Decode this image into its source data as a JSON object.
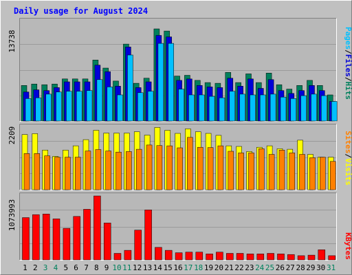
{
  "title": "Daily usage for August 2024",
  "colors": {
    "background": "#c0c0c0",
    "plot": "#b8b8b8",
    "title": "#0000ff",
    "hits": "#00805c",
    "files": "#0000d8",
    "pages": "#00c0ff",
    "visits": "#ffff00",
    "sites": "#ff8000",
    "kbytes": "#ff0000",
    "weekend": "#00805c",
    "weekday": "#000000"
  },
  "legend": {
    "pages": "Pages",
    "files": "Files",
    "hits": "Hits",
    "visits": "Visits",
    "sites": "Sites",
    "kbytes": "KBytes",
    "sep": "/"
  },
  "chart_data": [
    {
      "type": "bar",
      "panel": "hits-files-pages",
      "max_label": "13738",
      "ylim": [
        0,
        13738
      ],
      "categories": [
        "1",
        "2",
        "3",
        "4",
        "5",
        "6",
        "7",
        "8",
        "9",
        "10",
        "11",
        "12",
        "13",
        "14",
        "15",
        "16",
        "17",
        "18",
        "19",
        "20",
        "21",
        "22",
        "23",
        "24",
        "25",
        "26",
        "27",
        "28",
        "29",
        "30",
        "31"
      ],
      "series": [
        {
          "name": "Hits",
          "values": [
            4900,
            5100,
            5000,
            5100,
            5800,
            5800,
            5800,
            8400,
            7300,
            5500,
            10600,
            5200,
            5900,
            12700,
            12400,
            6200,
            6300,
            5600,
            5300,
            5200,
            6700,
            5300,
            6500,
            5300,
            6600,
            5000,
            4400,
            4900,
            5600,
            4900,
            3600
          ]
        },
        {
          "name": "Files",
          "values": [
            4000,
            4300,
            4200,
            4600,
            5400,
            5400,
            5400,
            7700,
            6800,
            4800,
            10200,
            4600,
            5400,
            11800,
            11600,
            5600,
            5800,
            4900,
            4700,
            4600,
            5900,
            4800,
            5800,
            4500,
            5700,
            4200,
            3800,
            4200,
            4900,
            4200,
            2700
          ]
        },
        {
          "name": "Pages",
          "values": [
            3100,
            3200,
            3700,
            4000,
            4100,
            4100,
            4200,
            5700,
            4700,
            3600,
            9100,
            3900,
            4100,
            10700,
            10700,
            4400,
            3600,
            3600,
            3400,
            3200,
            4100,
            3700,
            3600,
            3600,
            3700,
            3300,
            3100,
            3500,
            3700,
            3500,
            2700
          ]
        }
      ]
    },
    {
      "type": "bar",
      "panel": "visits-sites",
      "max_label": "2209",
      "ylim": [
        0,
        2209
      ],
      "categories": [
        "1",
        "2",
        "3",
        "4",
        "5",
        "6",
        "7",
        "8",
        "9",
        "10",
        "11",
        "12",
        "13",
        "14",
        "15",
        "16",
        "17",
        "18",
        "19",
        "20",
        "21",
        "22",
        "23",
        "24",
        "25",
        "26",
        "27",
        "28",
        "29",
        "30",
        "31"
      ],
      "series": [
        {
          "name": "Visits",
          "values": [
            1950,
            1980,
            1400,
            1180,
            1400,
            1550,
            1770,
            2100,
            2000,
            2000,
            2000,
            2050,
            1930,
            2200,
            2100,
            1990,
            2150,
            2050,
            1990,
            1920,
            1550,
            1530,
            1350,
            1500,
            1550,
            1450,
            1430,
            1750,
            1250,
            1150,
            1150
          ]
        },
        {
          "name": "Sites",
          "values": [
            1280,
            1280,
            1200,
            1150,
            1150,
            1150,
            1370,
            1420,
            1370,
            1330,
            1350,
            1430,
            1580,
            1560,
            1550,
            1480,
            1850,
            1500,
            1490,
            1550,
            1360,
            1300,
            1300,
            1450,
            1250,
            1400,
            1300,
            1250,
            1130,
            1150,
            1000
          ]
        }
      ]
    },
    {
      "type": "bar",
      "panel": "kbytes",
      "max_label": "1073993",
      "ylim": [
        0,
        1073993
      ],
      "categories": [
        "1",
        "2",
        "3",
        "4",
        "5",
        "6",
        "7",
        "8",
        "9",
        "10",
        "11",
        "12",
        "13",
        "14",
        "15",
        "16",
        "17",
        "18",
        "19",
        "20",
        "21",
        "22",
        "23",
        "24",
        "25",
        "26",
        "27",
        "28",
        "29",
        "30",
        "31"
      ],
      "series": [
        {
          "name": "KBytes",
          "values": [
            710000,
            760000,
            770000,
            690000,
            530000,
            730000,
            850000,
            1073993,
            620000,
            110000,
            160000,
            500000,
            840000,
            210000,
            160000,
            120000,
            130000,
            130000,
            100000,
            130000,
            110000,
            110000,
            100000,
            100000,
            110000,
            100000,
            90000,
            70000,
            80000,
            170000,
            70000
          ]
        }
      ]
    }
  ],
  "days": [
    {
      "label": "1",
      "weekend": false
    },
    {
      "label": "2",
      "weekend": false
    },
    {
      "label": "3",
      "weekend": true
    },
    {
      "label": "4",
      "weekend": true
    },
    {
      "label": "5",
      "weekend": false
    },
    {
      "label": "6",
      "weekend": false
    },
    {
      "label": "7",
      "weekend": false
    },
    {
      "label": "8",
      "weekend": false
    },
    {
      "label": "9",
      "weekend": false
    },
    {
      "label": "10",
      "weekend": true
    },
    {
      "label": "11",
      "weekend": true
    },
    {
      "label": "12",
      "weekend": false
    },
    {
      "label": "13",
      "weekend": false
    },
    {
      "label": "14",
      "weekend": false
    },
    {
      "label": "15",
      "weekend": false
    },
    {
      "label": "16",
      "weekend": false
    },
    {
      "label": "17",
      "weekend": true
    },
    {
      "label": "18",
      "weekend": true
    },
    {
      "label": "19",
      "weekend": false
    },
    {
      "label": "20",
      "weekend": false
    },
    {
      "label": "21",
      "weekend": false
    },
    {
      "label": "22",
      "weekend": false
    },
    {
      "label": "23",
      "weekend": false
    },
    {
      "label": "24",
      "weekend": true
    },
    {
      "label": "25",
      "weekend": true
    },
    {
      "label": "26",
      "weekend": false
    },
    {
      "label": "27",
      "weekend": false
    },
    {
      "label": "28",
      "weekend": false
    },
    {
      "label": "29",
      "weekend": false
    },
    {
      "label": "30",
      "weekend": false
    },
    {
      "label": "31",
      "weekend": true
    }
  ]
}
